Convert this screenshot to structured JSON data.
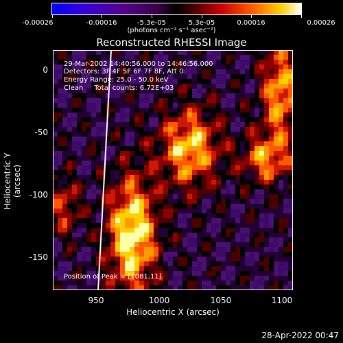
{
  "colorbar": {
    "ticks": [
      "-0.00026",
      "-0.00016",
      "-5.3e-05",
      "5.3e-05",
      "0.00016",
      "0.00026"
    ],
    "units": "(photons cm⁻² s⁻¹ asec⁻²)"
  },
  "title": "Reconstructed RHESSI Image",
  "annotations": {
    "line1": "29-Mar-2002 14:40:56.000 to 14:46:56.000",
    "line2": "Detectors: 3F 4F 5F 6F 7F 8F, Att 0",
    "line3": "Energy Range: 25.0 - 50.0 keV",
    "line4": "Clean     Total counts: 6.72E+03",
    "peak": "Position of Peak = [1081,11]"
  },
  "axes": {
    "xlabel": "Heliocentric X (arcsec)",
    "ylabel": "Heliocentric Y (arcsec)",
    "xticks": [
      "950",
      "1000",
      "1050",
      "1100"
    ],
    "yticks": [
      "0",
      "-50",
      "-100",
      "-150"
    ]
  },
  "footer": "28-Apr-2022 00:47"
}
